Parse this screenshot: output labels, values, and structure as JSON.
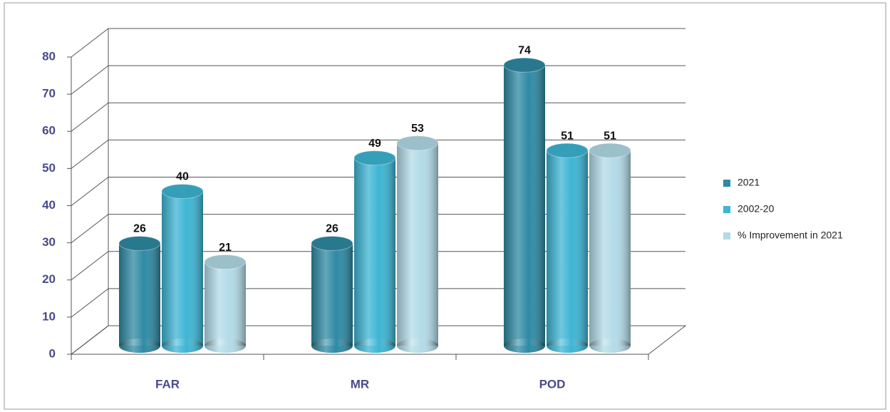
{
  "chart_data": {
    "type": "bar",
    "categories": [
      "FAR",
      "MR",
      "POD"
    ],
    "series": [
      {
        "name": "2021",
        "color": "#2e8aa4",
        "values": [
          26,
          26,
          74
        ]
      },
      {
        "name": "2002-20",
        "color": "#3db5d4",
        "values": [
          40,
          49,
          51
        ]
      },
      {
        "name": "% Improvement in 2021",
        "color": "#b2dbe8",
        "values": [
          21,
          53,
          51
        ]
      }
    ],
    "ylim": [
      0,
      80
    ],
    "yticks": [
      0,
      10,
      20,
      30,
      40,
      50,
      60,
      70,
      80
    ],
    "grid": true,
    "legend": "right"
  }
}
